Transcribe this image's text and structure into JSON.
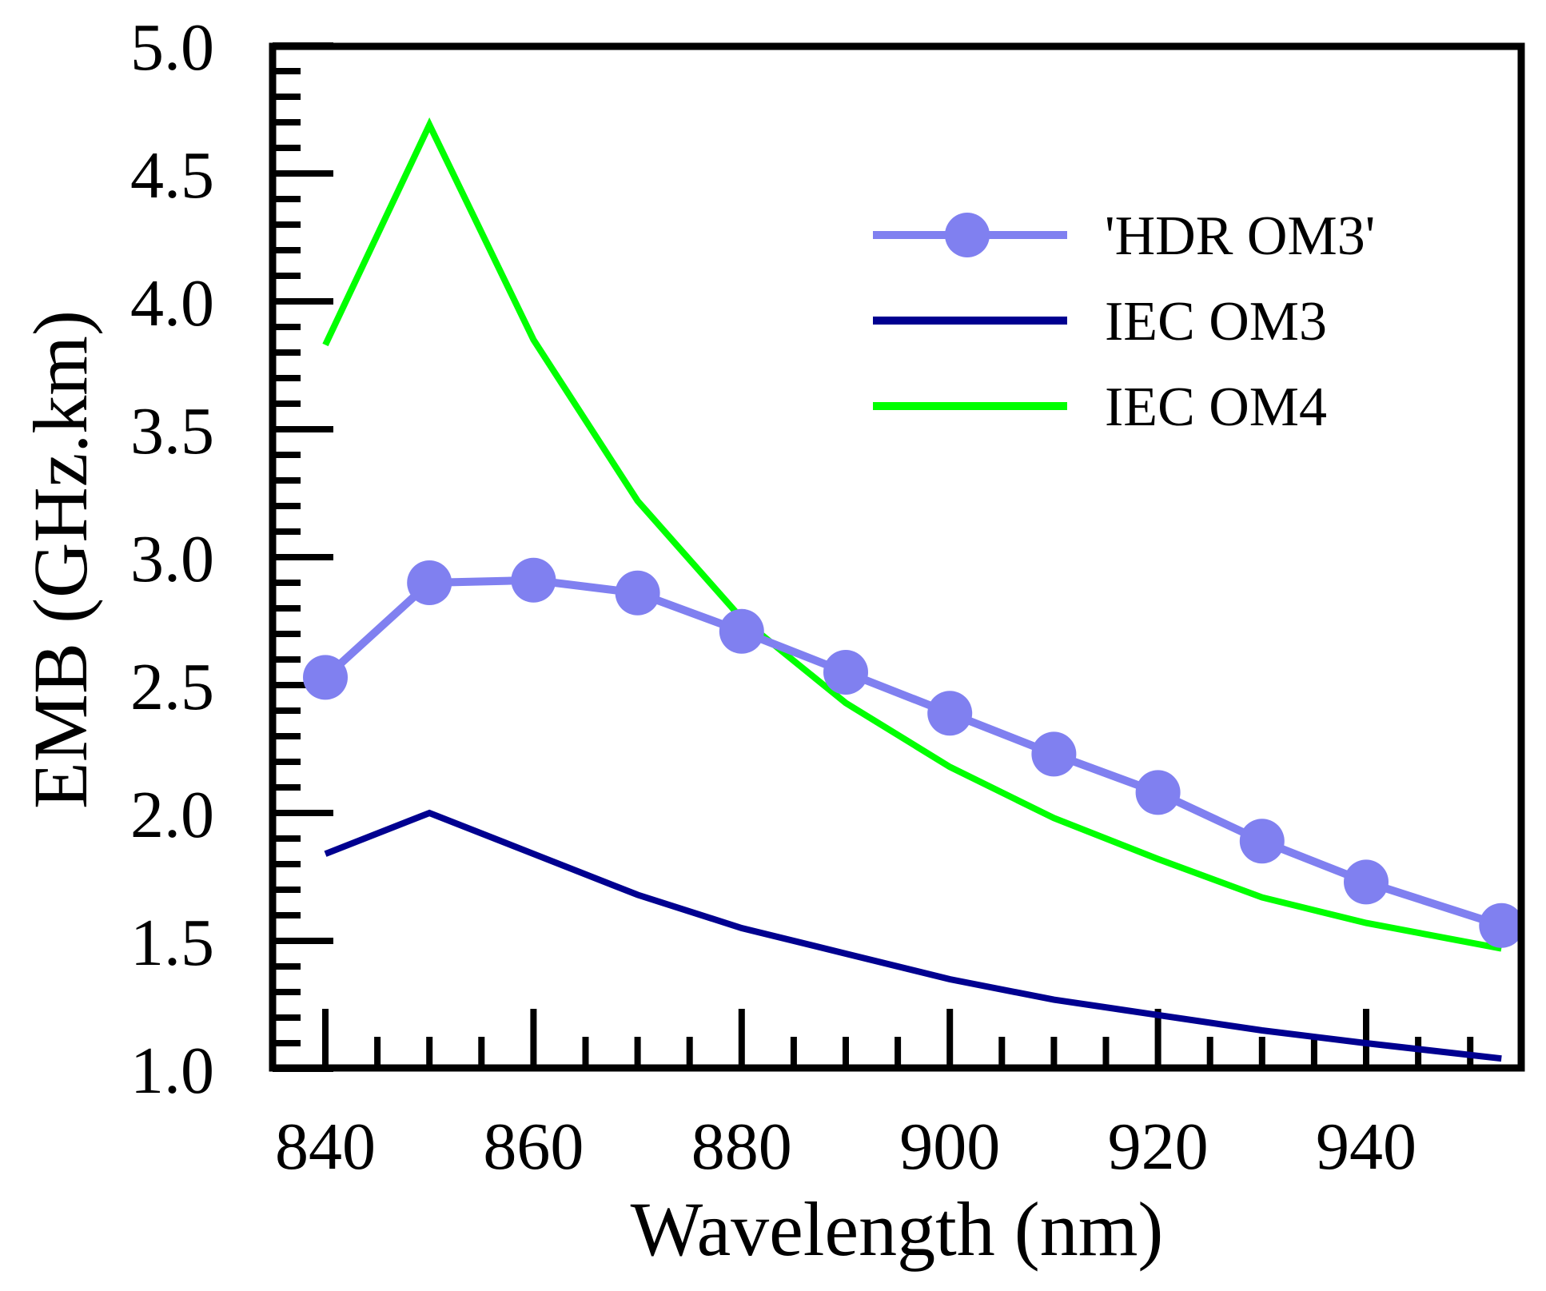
{
  "chart_data": {
    "type": "line",
    "title": "",
    "xlabel": "Wavelength (nm)",
    "ylabel": "EMB (GHz.km)",
    "xlim": [
      835,
      955
    ],
    "ylim": [
      1.0,
      5.0
    ],
    "xticks": [
      "840",
      "860",
      "880",
      "900",
      "920",
      "940"
    ],
    "yticks": [
      "1.0",
      "1.5",
      "2.0",
      "2.5",
      "3.0",
      "3.5",
      "4.0",
      "4.5",
      "5.0"
    ],
    "legend_position": "top-right",
    "x": [
      840,
      850,
      860,
      870,
      880,
      890,
      900,
      910,
      920,
      930,
      940,
      953
    ],
    "series": [
      {
        "name": "'HDR OM3'",
        "color": "#8080f0",
        "markers": true,
        "values": [
          2.53,
          2.9,
          2.91,
          2.86,
          2.71,
          2.55,
          2.39,
          2.23,
          2.08,
          1.89,
          1.73,
          1.56
        ]
      },
      {
        "name": "IEC OM3",
        "color": "#000090",
        "markers": false,
        "values": [
          1.84,
          2.0,
          1.84,
          1.68,
          1.55,
          1.45,
          1.35,
          1.27,
          1.21,
          1.15,
          1.1,
          1.04
        ]
      },
      {
        "name": "IEC OM4",
        "color": "#00ff00",
        "markers": false,
        "values": [
          3.83,
          4.69,
          3.85,
          3.22,
          2.76,
          2.43,
          2.18,
          1.98,
          1.82,
          1.67,
          1.57,
          1.47
        ]
      }
    ]
  }
}
